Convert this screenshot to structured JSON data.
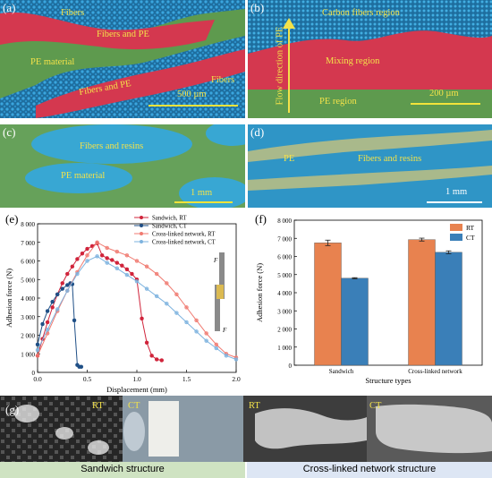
{
  "panels": {
    "a": {
      "label": "(a)",
      "fibers_top": "Fibers",
      "fibers_pe_1": "Fibers and PE",
      "pe_material": "PE material",
      "fibers_pe_2": "Fibers and PE",
      "fibers_right": "Fibers",
      "scale": "500 µm"
    },
    "b": {
      "label": "(b)",
      "carbon": "Carbon fibers region",
      "flow": "Flow direction of PE",
      "mixing": "Mixing region",
      "pe_region": "PE region",
      "scale": "200 µm"
    },
    "c": {
      "label": "(c)",
      "fibers_resins": "Fibers and resins",
      "pe_material": "PE material",
      "scale": "1 mm"
    },
    "d": {
      "label": "(d)",
      "pe": "PE",
      "fibers_resins": "Fibers and resins",
      "scale": "1 mm"
    },
    "e": {
      "label": "(e)"
    },
    "f": {
      "label": "(f)"
    },
    "g": {
      "label": "(g)",
      "rt1": "RT",
      "ct1": "CT",
      "rt2": "RT",
      "ct2": "CT"
    }
  },
  "bottom": {
    "sandwich": "Sandwich structure",
    "crosslinked": "Cross-linked network structure"
  },
  "colors": {
    "pe_green": "#5e9a4e",
    "fiber_blue": "#2a8fc4",
    "fiber_pink": "#d4384f",
    "rt_orange": "#e8824f",
    "ct_blue": "#3a7fb8"
  },
  "chart_data": [
    {
      "type": "line",
      "xlabel": "Displacement (mm)",
      "ylabel": "Adhesion force (N)",
      "xlim": [
        0.0,
        2.0
      ],
      "ylim": [
        0,
        8000
      ],
      "xticks": [
        "0.0",
        "0.5",
        "1.0",
        "1.5",
        "2.0"
      ],
      "yticks": [
        "0",
        "1 000",
        "2 000",
        "3 000",
        "4 000",
        "5 000",
        "6 000",
        "7 000",
        "8 000"
      ],
      "legend_position": "top-right",
      "annotations": [
        "F",
        "F"
      ],
      "series": [
        {
          "name": "Sandwich, RT",
          "color": "#d0243b",
          "x": [
            0,
            0.05,
            0.1,
            0.15,
            0.2,
            0.25,
            0.3,
            0.35,
            0.4,
            0.45,
            0.5,
            0.55,
            0.6,
            0.65,
            0.7,
            0.75,
            0.8,
            0.85,
            0.9,
            0.95,
            1.0,
            1.05,
            1.1,
            1.15,
            1.2,
            1.25
          ],
          "y": [
            900,
            1800,
            2700,
            3500,
            4200,
            4800,
            5300,
            5700,
            6100,
            6400,
            6650,
            6800,
            6950,
            6300,
            6150,
            6050,
            5900,
            5750,
            5550,
            5300,
            5000,
            2900,
            1600,
            900,
            700,
            650
          ]
        },
        {
          "name": "Sandwich, CT",
          "color": "#1f4f86",
          "x": [
            0,
            0.05,
            0.1,
            0.15,
            0.2,
            0.25,
            0.3,
            0.33,
            0.35,
            0.37,
            0.4,
            0.42,
            0.44
          ],
          "y": [
            1500,
            2600,
            3300,
            3800,
            4200,
            4500,
            4700,
            4800,
            4750,
            2800,
            400,
            300,
            300
          ]
        },
        {
          "name": "Cross-linked network, RT",
          "color": "#f07a70",
          "x": [
            0,
            0.1,
            0.2,
            0.3,
            0.4,
            0.5,
            0.6,
            0.7,
            0.8,
            0.9,
            1.0,
            1.1,
            1.2,
            1.3,
            1.4,
            1.5,
            1.6,
            1.7,
            1.8,
            1.9,
            2.0
          ],
          "y": [
            900,
            2100,
            3300,
            4400,
            5400,
            6300,
            7000,
            6700,
            6500,
            6300,
            6000,
            5700,
            5300,
            4800,
            4200,
            3500,
            2800,
            2100,
            1500,
            1000,
            800
          ]
        },
        {
          "name": "Cross-linked network, CT",
          "color": "#7db3df",
          "x": [
            0,
            0.1,
            0.2,
            0.3,
            0.4,
            0.5,
            0.6,
            0.7,
            0.8,
            0.9,
            1.0,
            1.1,
            1.2,
            1.3,
            1.4,
            1.5,
            1.6,
            1.7,
            1.8,
            1.9,
            2.0
          ],
          "y": [
            1200,
            2300,
            3400,
            4400,
            5300,
            6000,
            6250,
            5900,
            5600,
            5250,
            4900,
            4500,
            4100,
            3700,
            3200,
            2700,
            2200,
            1700,
            1300,
            900,
            700
          ]
        }
      ]
    },
    {
      "type": "bar",
      "xlabel": "Structure types",
      "ylabel": "Adhesion force (N)",
      "ylim": [
        0,
        8000
      ],
      "yticks": [
        "0",
        "1 000",
        "2 000",
        "3 000",
        "4 000",
        "5 000",
        "6 000",
        "7 000",
        "8 000"
      ],
      "categories": [
        "Sandwich",
        "Cross-linked network"
      ],
      "legend_position": "top-right",
      "series": [
        {
          "name": "RT",
          "color": "#e8824f",
          "values": [
            6750,
            6930
          ],
          "errors": [
            150,
            80
          ]
        },
        {
          "name": "CT",
          "color": "#3a7fb8",
          "values": [
            4800,
            6230
          ],
          "errors": [
            30,
            80
          ]
        }
      ]
    }
  ]
}
